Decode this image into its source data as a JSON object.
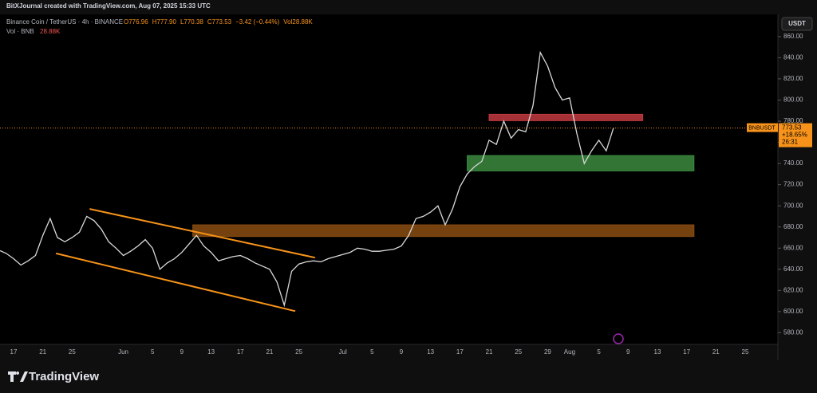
{
  "header": {
    "credit": "BitXJournal created with TradingView.com, Aug 07, 2025 15:33 UTC",
    "symbol": "Binance Coin / TetherUS · 4h · BINANCE",
    "quote": [
      "O776.96",
      "H777.90",
      "L770.38",
      "C773.53",
      "−3.42 (−0.44%)",
      "Vol28.88K"
    ],
    "volume": "Vol · BNB",
    "volume_value": "28.88K",
    "currency": "USDT"
  },
  "footer": {
    "logo": "TradingView"
  },
  "chart_data": {
    "type": "line",
    "color": "#d9d9d9",
    "grid": false,
    "categories": [
      null,
      null,
      "17",
      null,
      null,
      null,
      "21",
      null,
      null,
      null,
      "25",
      null,
      null,
      null,
      null,
      null,
      null,
      "Jun",
      null,
      null,
      null,
      "5",
      null,
      null,
      null,
      "9",
      null,
      null,
      null,
      "13",
      null,
      null,
      null,
      "17",
      null,
      null,
      null,
      "21",
      null,
      null,
      null,
      "25",
      null,
      null,
      null,
      null,
      null,
      "Jul",
      null,
      null,
      null,
      "5",
      null,
      null,
      null,
      "9",
      null,
      null,
      null,
      "13",
      null,
      null,
      null,
      "17",
      null,
      null,
      null,
      "21",
      null,
      null,
      null,
      "25",
      null,
      null,
      null,
      "29",
      null,
      null,
      "Aug",
      null,
      null,
      null,
      "5",
      null,
      null,
      null,
      "9",
      null,
      null,
      null,
      "13",
      null,
      null,
      null,
      "17",
      null,
      null,
      null,
      "21",
      null,
      null,
      null,
      "25",
      null,
      null,
      null,
      null
    ],
    "values": [
      658,
      655,
      650,
      644,
      648,
      653,
      672,
      688,
      670,
      666,
      670,
      675,
      690,
      686,
      678,
      666,
      660,
      653,
      657,
      662,
      668,
      660,
      640,
      646,
      650,
      656,
      664,
      672,
      662,
      656,
      648,
      650,
      652,
      653,
      650,
      646,
      643,
      640,
      628,
      606,
      638,
      645,
      647,
      648,
      647,
      650,
      652,
      654,
      656,
      660,
      659,
      657,
      657,
      658,
      659,
      662,
      672,
      688,
      690,
      694,
      700,
      682,
      697,
      718,
      730,
      737,
      742,
      762,
      758,
      780,
      764,
      772,
      770,
      795,
      845,
      832,
      812,
      800,
      802,
      768,
      740,
      752,
      762,
      752,
      773.53,
      null,
      null,
      null,
      null,
      null,
      null,
      null,
      null,
      null,
      null,
      null,
      null,
      null,
      null,
      null,
      null,
      null,
      null,
      null,
      null,
      null,
      null
    ],
    "ylim": [
      569,
      881
    ],
    "yticks": [
      {
        "value": 580,
        "label": "580.00"
      },
      {
        "value": 600,
        "label": "600.00"
      },
      {
        "value": 620,
        "label": "620.00"
      },
      {
        "value": 640,
        "label": "640.00"
      },
      {
        "value": 660,
        "label": "660.00"
      },
      {
        "value": 680,
        "label": "680.00"
      },
      {
        "value": 700,
        "label": "700.00"
      },
      {
        "value": 720,
        "label": "720.00"
      },
      {
        "value": 740,
        "label": "740.00"
      },
      {
        "value": 760,
        "label": "760.00"
      },
      {
        "value": 780,
        "label": "780.00"
      },
      {
        "value": 800,
        "label": "800.00"
      },
      {
        "value": 820,
        "label": "820.00"
      },
      {
        "value": 840,
        "label": "840.00"
      },
      {
        "value": 860,
        "label": "860.00"
      }
    ],
    "zones": [
      {
        "color": "#c0393f",
        "x": [
          67,
          88
        ],
        "y": [
          780.5,
          786.5
        ]
      },
      {
        "color": "#3b8a3e",
        "x": [
          64,
          95
        ],
        "y": [
          733,
          747.5
        ]
      },
      {
        "color": "#8a4c12",
        "x": [
          26.5,
          95
        ],
        "y": [
          671,
          682
        ]
      }
    ],
    "trendlines": [
      {
        "color": "#f7931a",
        "x": [
          12.4,
          43.2
        ],
        "y": [
          697,
          651
        ]
      },
      {
        "color": "#f7931a",
        "x": [
          7.8,
          40.5
        ],
        "y": [
          655,
          600.4
        ]
      }
    ],
    "last_price": {
      "symbol": "BNBUSDT",
      "value": 773.53,
      "change": "+18.65%",
      "countdown": "26:31",
      "color": "#f7931a"
    }
  }
}
